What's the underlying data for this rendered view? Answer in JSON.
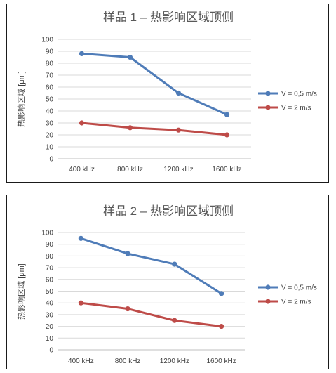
{
  "chart_data": [
    {
      "type": "line",
      "title": "样品 1 – 热影响区域顶侧",
      "xlabel": "",
      "ylabel": "热影响区域 [μm]",
      "categories": [
        "400 kHz",
        "800 kHz",
        "1200 kHz",
        "1600 kHz"
      ],
      "ylim": [
        0,
        100
      ],
      "yticks": [
        0,
        10,
        20,
        30,
        40,
        50,
        60,
        70,
        80,
        90,
        100
      ],
      "grid": true,
      "legend_position": "right",
      "series": [
        {
          "name": "V = 0,5 m/s",
          "color": "#4f7cb8",
          "values": [
            88,
            85,
            55,
            37
          ]
        },
        {
          "name": "V = 2 m/s",
          "color": "#be4b48",
          "values": [
            30,
            26,
            24,
            20
          ]
        }
      ]
    },
    {
      "type": "line",
      "title": "样品 2 – 热影响区域顶侧",
      "xlabel": "",
      "ylabel": "热影响区域 [μm]",
      "categories": [
        "400 kHz",
        "800 kHz",
        "1200 kHz",
        "1600 kHz"
      ],
      "ylim": [
        0,
        100
      ],
      "yticks": [
        0,
        10,
        20,
        30,
        40,
        50,
        60,
        70,
        80,
        90,
        100
      ],
      "grid": true,
      "legend_position": "right",
      "series": [
        {
          "name": "V = 0,5 m/s",
          "color": "#4f7cb8",
          "values": [
            95,
            82,
            73,
            48
          ]
        },
        {
          "name": "V = 2 m/s",
          "color": "#be4b48",
          "values": [
            40,
            35,
            25,
            20
          ]
        }
      ]
    }
  ]
}
